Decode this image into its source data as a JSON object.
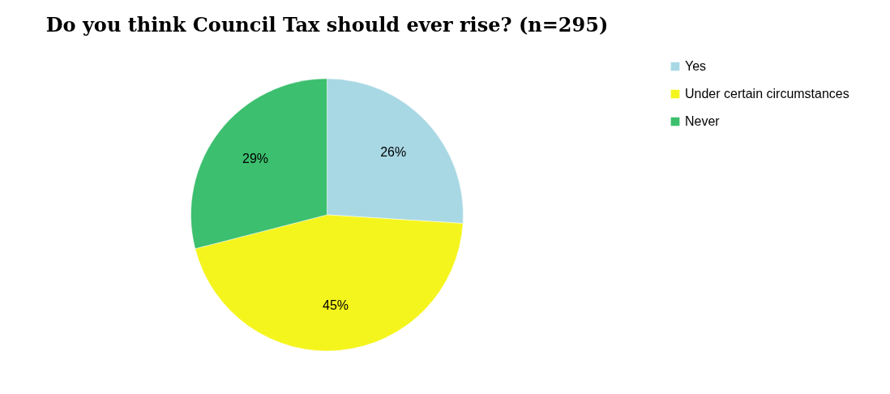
{
  "chart_data": {
    "type": "pie",
    "title": "Do you think Council Tax should ever rise? (n=295)",
    "categories": [
      "Yes",
      "Under certain circumstances",
      "Never"
    ],
    "values": [
      26,
      45,
      29
    ],
    "colors": [
      "#a8d8e4",
      "#f5f51e",
      "#3cbf6e"
    ],
    "value_labels": [
      "26%",
      "45%",
      "29%"
    ],
    "legend": "right"
  }
}
